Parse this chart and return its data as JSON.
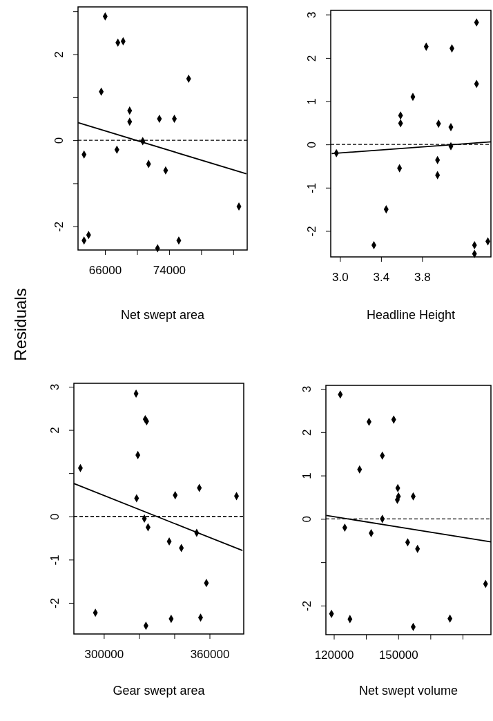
{
  "chart_data": [
    {
      "type": "scatter",
      "xlabel": "Net swept area",
      "ylabel": "Residuals",
      "xlim": [
        62640,
        83740
      ],
      "ylim": [
        -2.55,
        3.1
      ],
      "xticks": [
        66000,
        {
          "value": 70000,
          "label": null
        },
        74000,
        {
          "value": 78000,
          "label": null
        },
        {
          "value": 82000,
          "label": null
        }
      ],
      "yticks": [
        {
          "value": -2,
          "label": "-2"
        },
        {
          "value": -1,
          "label": null
        },
        0,
        {
          "value": 1,
          "label": null
        },
        2,
        {
          "value": 3,
          "label": null
        }
      ],
      "series": [
        {
          "marker": "diamond",
          "color": "#000000",
          "x": [
            66030,
            67610,
            68270,
            76440,
            65540,
            69080,
            69080,
            72790,
            74660,
            70710,
            63390,
            67490,
            71440,
            73570,
            82710,
            63390,
            63960,
            75210,
            72560
          ],
          "values": [
            2.88,
            2.27,
            2.3,
            1.43,
            1.13,
            0.69,
            0.43,
            0.5,
            0.5,
            -0.02,
            -0.33,
            -0.22,
            -0.55,
            -0.7,
            -1.54,
            -2.33,
            -2.2,
            -2.33,
            -2.51
          ]
        },
        {
          "type": "line",
          "color": "#000000",
          "x": [
            62660,
            83630
          ],
          "values": [
            0.41,
            -0.78
          ]
        }
      ],
      "ref_lines": [
        {
          "axis": "y",
          "value": 0,
          "line_style": "dashed",
          "color": "#000000"
        }
      ]
    },
    {
      "type": "scatter",
      "xlabel": "Headline Height",
      "xlim": [
        2.91,
        4.47
      ],
      "ylim": [
        -2.6,
        3.1
      ],
      "xticks": [
        {
          "value": 3.0,
          "label": "3.0"
        },
        3.4,
        3.8
      ],
      "yticks": [
        {
          "value": -2,
          "label": "-2"
        },
        {
          "value": -1,
          "label": "-1"
        },
        0,
        1,
        2,
        3
      ],
      "series": [
        {
          "marker": "diamond",
          "color": "#000000",
          "x": [
            4.33,
            3.84,
            4.09,
            4.33,
            3.71,
            3.59,
            3.59,
            3.96,
            4.08,
            4.08,
            2.965,
            3.95,
            3.58,
            3.95,
            3.45,
            3.33,
            4.31,
            4.44,
            4.31
          ],
          "values": [
            2.82,
            2.26,
            2.22,
            1.4,
            1.1,
            0.67,
            0.49,
            0.48,
            0.4,
            -0.04,
            -0.2,
            -0.36,
            -0.55,
            -0.71,
            -1.5,
            -2.33,
            -2.33,
            -2.24,
            -2.53
          ]
        },
        {
          "type": "line",
          "color": "#000000",
          "x": [
            2.92,
            4.47
          ],
          "values": [
            -0.21,
            0.06
          ]
        }
      ],
      "ref_lines": [
        {
          "axis": "y",
          "value": 0,
          "line_style": "dashed",
          "color": "#000000"
        }
      ]
    },
    {
      "type": "scatter",
      "xlabel": "Gear swept area",
      "xlim": [
        283000,
        379400
      ],
      "ylim": [
        -2.72,
        3.08
      ],
      "xticks": [
        300000,
        {
          "value": 320000,
          "label": null
        },
        {
          "value": 340000,
          "label": null
        },
        360000
      ],
      "yticks": [
        {
          "value": -2,
          "label": "-2"
        },
        {
          "value": -1,
          "label": "-1"
        },
        0,
        {
          "value": 1,
          "label": null
        },
        2,
        3
      ],
      "series": [
        {
          "marker": "diamond",
          "color": "#000000",
          "x": [
            318300,
            323500,
            324300,
            319300,
            286700,
            318600,
            340500,
            354200,
            375300,
            323000,
            325100,
            337100,
            344000,
            352700,
            358200,
            295200,
            323900,
            338200,
            354900
          ],
          "values": [
            2.84,
            2.25,
            2.2,
            1.42,
            1.12,
            0.42,
            0.49,
            0.66,
            0.47,
            -0.05,
            -0.25,
            -0.58,
            -0.73,
            -0.38,
            -1.54,
            -2.23,
            -2.53,
            -2.37,
            -2.34
          ]
        },
        {
          "type": "line",
          "color": "#000000",
          "x": [
            283000,
            378700
          ],
          "values": [
            0.76,
            -0.79
          ]
        }
      ],
      "ref_lines": [
        {
          "axis": "y",
          "value": 0,
          "line_style": "dashed",
          "color": "#000000"
        }
      ]
    },
    {
      "type": "scatter",
      "xlabel": "Net swept volume",
      "xlim": [
        116300,
        193200
      ],
      "ylim": [
        -2.67,
        3.08
      ],
      "xticks": [
        120000,
        {
          "value": 135000,
          "label": null
        },
        150000,
        {
          "value": 165000,
          "label": null
        },
        {
          "value": 180000,
          "label": null
        }
      ],
      "yticks": [
        {
          "value": -2,
          "label": "-2"
        },
        {
          "value": -1,
          "label": null
        },
        0,
        1,
        2,
        3
      ],
      "series": [
        {
          "marker": "diamond",
          "color": "#000000",
          "x": [
            123000,
            136400,
            147900,
            142600,
            132000,
            149800,
            150100,
            149600,
            157000,
            142600,
            125100,
            137400,
            154400,
            159000,
            190700,
            118900,
            127500,
            174100,
            157000
          ],
          "values": [
            2.87,
            2.24,
            2.29,
            1.46,
            1.14,
            0.71,
            0.52,
            0.44,
            0.52,
            0,
            -0.2,
            -0.33,
            -0.54,
            -0.69,
            -1.5,
            -2.19,
            -2.31,
            -2.3,
            -2.49
          ]
        },
        {
          "type": "line",
          "color": "#000000",
          "x": [
            116500,
            193200
          ],
          "values": [
            0.08,
            -0.53
          ]
        }
      ],
      "ref_lines": [
        {
          "axis": "y",
          "value": 0,
          "line_style": "dashed",
          "color": "#000000"
        }
      ]
    }
  ]
}
